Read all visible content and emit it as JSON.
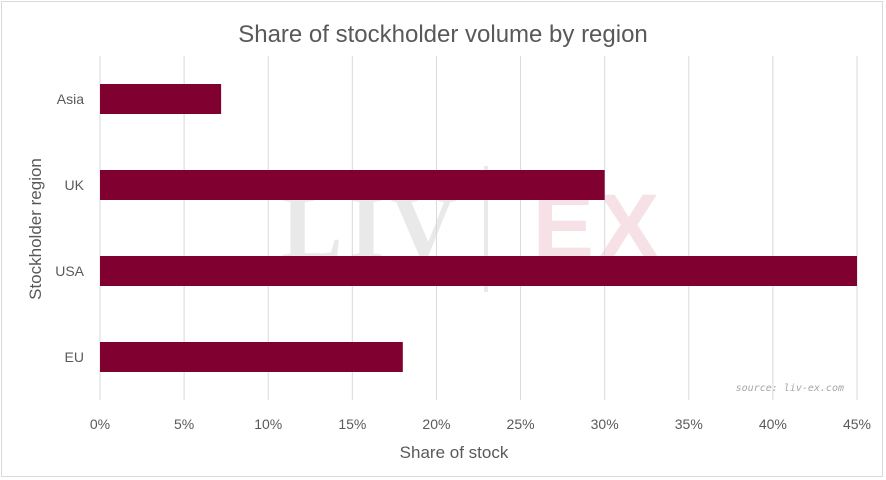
{
  "chart_data": {
    "type": "bar",
    "orientation": "horizontal",
    "title": "Share of stockholder volume by region",
    "xlabel": "Share of stock",
    "ylabel": "Stockholder region",
    "categories": [
      "Asia",
      "UK",
      "USA",
      "EU"
    ],
    "values": [
      7.2,
      30.0,
      45.0,
      18.0
    ],
    "xlim": [
      0,
      45
    ],
    "x_ticks": [
      0,
      5,
      10,
      15,
      20,
      25,
      30,
      35,
      40,
      45
    ],
    "x_tick_labels": [
      "0%",
      "5%",
      "10%",
      "15%",
      "20%",
      "25%",
      "30%",
      "35%",
      "40%",
      "45%"
    ],
    "grid": "vertical",
    "legend": "none",
    "bar_color": "#800030",
    "source_note": "source: liv-ex.com",
    "watermark_left": "LIV",
    "watermark_right": "EX"
  }
}
